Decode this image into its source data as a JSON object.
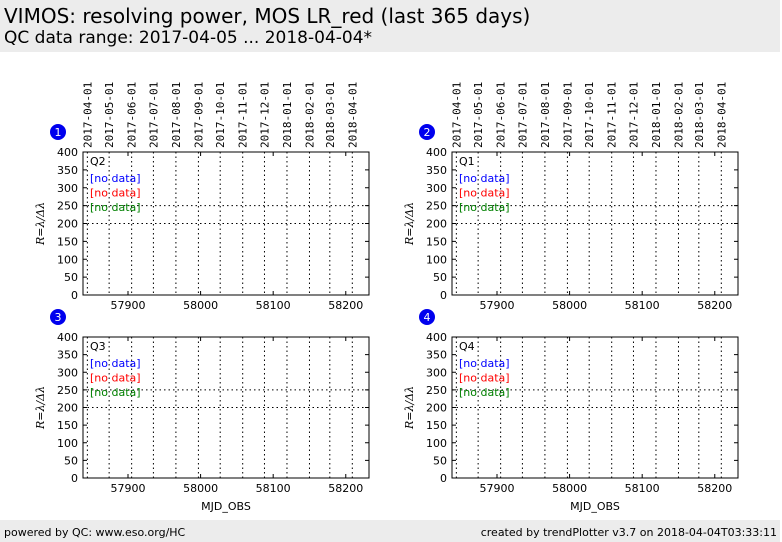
{
  "page": {
    "title": "VIMOS: resolving power, MOS LR_red (last 365 days)",
    "subtitle": "QC data range: 2017-04-05 ... 2018-04-04*",
    "footer_left": "powered by QC: www.eso.org/HC",
    "footer_right": "created by trendPlotter v3.7 on 2018-04-04T03:33:11"
  },
  "chart_data": [
    {
      "type": "scatter",
      "badge": "1",
      "quadrant": "Q2",
      "series": [],
      "annotations": [
        {
          "text": "[no data]",
          "color": "#0000ff"
        },
        {
          "text": "[no data]",
          "color": "#ff0000"
        },
        {
          "text": "[no data]",
          "color": "#008000"
        }
      ],
      "ylabel": "R=λ/Δλ",
      "xlabel": "",
      "ylim": [
        0,
        400
      ],
      "xlim": [
        57838,
        58232
      ],
      "yticks": [
        0,
        50,
        100,
        150,
        200,
        250,
        300,
        350,
        400
      ],
      "xticks": [
        57900,
        58000,
        58100,
        58200
      ],
      "ref_lines": [
        200,
        250
      ],
      "date_ticks": [
        {
          "mjd": 57844,
          "label": "2017-04-01"
        },
        {
          "mjd": 57874,
          "label": "2017-05-01"
        },
        {
          "mjd": 57905,
          "label": "2017-06-01"
        },
        {
          "mjd": 57935,
          "label": "2017-07-01"
        },
        {
          "mjd": 57966,
          "label": "2017-08-01"
        },
        {
          "mjd": 57997,
          "label": "2017-09-01"
        },
        {
          "mjd": 58027,
          "label": "2017-10-01"
        },
        {
          "mjd": 58058,
          "label": "2017-11-01"
        },
        {
          "mjd": 58088,
          "label": "2017-12-01"
        },
        {
          "mjd": 58119,
          "label": "2018-01-01"
        },
        {
          "mjd": 58150,
          "label": "2018-02-01"
        },
        {
          "mjd": 58178,
          "label": "2018-03-01"
        },
        {
          "mjd": 58209,
          "label": "2018-04-01"
        }
      ]
    },
    {
      "type": "scatter",
      "badge": "2",
      "quadrant": "Q1",
      "series": [],
      "annotations": [
        {
          "text": "[no data]",
          "color": "#0000ff"
        },
        {
          "text": "[no data]",
          "color": "#ff0000"
        },
        {
          "text": "[no data]",
          "color": "#008000"
        }
      ],
      "ylabel": "R=λ/Δλ",
      "xlabel": "",
      "ylim": [
        0,
        400
      ],
      "xlim": [
        57838,
        58232
      ],
      "yticks": [
        0,
        50,
        100,
        150,
        200,
        250,
        300,
        350,
        400
      ],
      "xticks": [
        57900,
        58000,
        58100,
        58200
      ],
      "ref_lines": [
        200,
        250
      ],
      "date_ticks": [
        {
          "mjd": 57844,
          "label": "2017-04-01"
        },
        {
          "mjd": 57874,
          "label": "2017-05-01"
        },
        {
          "mjd": 57905,
          "label": "2017-06-01"
        },
        {
          "mjd": 57935,
          "label": "2017-07-01"
        },
        {
          "mjd": 57966,
          "label": "2017-08-01"
        },
        {
          "mjd": 57997,
          "label": "2017-09-01"
        },
        {
          "mjd": 58027,
          "label": "2017-10-01"
        },
        {
          "mjd": 58058,
          "label": "2017-11-01"
        },
        {
          "mjd": 58088,
          "label": "2017-12-01"
        },
        {
          "mjd": 58119,
          "label": "2018-01-01"
        },
        {
          "mjd": 58150,
          "label": "2018-02-01"
        },
        {
          "mjd": 58178,
          "label": "2018-03-01"
        },
        {
          "mjd": 58209,
          "label": "2018-04-01"
        }
      ]
    },
    {
      "type": "scatter",
      "badge": "3",
      "quadrant": "Q3",
      "series": [],
      "annotations": [
        {
          "text": "[no data]",
          "color": "#0000ff"
        },
        {
          "text": "[no data]",
          "color": "#ff0000"
        },
        {
          "text": "[no data]",
          "color": "#008000"
        }
      ],
      "ylabel": "R=λ/Δλ",
      "xlabel": "MJD_OBS",
      "ylim": [
        0,
        400
      ],
      "xlim": [
        57838,
        58232
      ],
      "yticks": [
        0,
        50,
        100,
        150,
        200,
        250,
        300,
        350,
        400
      ],
      "xticks": [
        57900,
        58000,
        58100,
        58200
      ],
      "ref_lines": [
        200,
        250
      ],
      "date_ticks": [
        {
          "mjd": 57844
        },
        {
          "mjd": 57874
        },
        {
          "mjd": 57905
        },
        {
          "mjd": 57935
        },
        {
          "mjd": 57966
        },
        {
          "mjd": 57997
        },
        {
          "mjd": 58027
        },
        {
          "mjd": 58058
        },
        {
          "mjd": 58088
        },
        {
          "mjd": 58119
        },
        {
          "mjd": 58150
        },
        {
          "mjd": 58178
        },
        {
          "mjd": 58209
        }
      ]
    },
    {
      "type": "scatter",
      "badge": "4",
      "quadrant": "Q4",
      "series": [],
      "annotations": [
        {
          "text": "[no data]",
          "color": "#0000ff"
        },
        {
          "text": "[no data]",
          "color": "#ff0000"
        },
        {
          "text": "[no data]",
          "color": "#008000"
        }
      ],
      "ylabel": "R=λ/Δλ",
      "xlabel": "MJD_OBS",
      "ylim": [
        0,
        400
      ],
      "xlim": [
        57838,
        58232
      ],
      "yticks": [
        0,
        50,
        100,
        150,
        200,
        250,
        300,
        350,
        400
      ],
      "xticks": [
        57900,
        58000,
        58100,
        58200
      ],
      "ref_lines": [
        200,
        250
      ],
      "date_ticks": [
        {
          "mjd": 57844
        },
        {
          "mjd": 57874
        },
        {
          "mjd": 57905
        },
        {
          "mjd": 57935
        },
        {
          "mjd": 57966
        },
        {
          "mjd": 57997
        },
        {
          "mjd": 58027
        },
        {
          "mjd": 58058
        },
        {
          "mjd": 58088
        },
        {
          "mjd": 58119
        },
        {
          "mjd": 58150
        },
        {
          "mjd": 58178
        },
        {
          "mjd": 58209
        }
      ]
    }
  ]
}
